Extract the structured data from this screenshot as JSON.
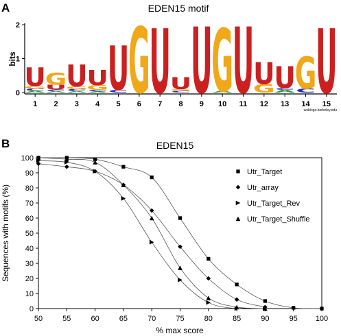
{
  "panel_labels": {
    "a": "A",
    "b": "B"
  },
  "chart_data": [
    {
      "type": "sequence-logo",
      "title": "EDEN15 motif",
      "ylabel": "bits",
      "ylim": [
        0,
        2
      ],
      "yticks": [
        "0",
        "1",
        "2"
      ],
      "credit": "weblogo.berkeley.edu",
      "colors": {
        "U": "#cc2020",
        "G": "#f0a818",
        "C": "#2030c0",
        "A": "#20a040"
      },
      "positions": [
        {
          "pos": "1",
          "stack": [
            [
              "A",
              0.05
            ],
            [
              "C",
              0.06
            ],
            [
              "G",
              0.08
            ],
            [
              "U",
              0.55
            ]
          ]
        },
        {
          "pos": "2",
          "stack": [
            [
              "A",
              0.04
            ],
            [
              "C",
              0.05
            ],
            [
              "U",
              0.14
            ],
            [
              "G",
              0.35
            ]
          ]
        },
        {
          "pos": "3",
          "stack": [
            [
              "A",
              0.04
            ],
            [
              "C",
              0.06
            ],
            [
              "G",
              0.08
            ],
            [
              "U",
              0.65
            ]
          ]
        },
        {
          "pos": "4",
          "stack": [
            [
              "A",
              0.03
            ],
            [
              "C",
              0.05
            ],
            [
              "G",
              0.14
            ],
            [
              "U",
              0.45
            ]
          ]
        },
        {
          "pos": "5",
          "stack": [
            [
              "C",
              0.08
            ],
            [
              "U",
              1.3
            ]
          ]
        },
        {
          "pos": "6",
          "stack": [
            [
              "G",
              1.95
            ]
          ]
        },
        {
          "pos": "7",
          "stack": [
            [
              "U",
              1.9
            ]
          ]
        },
        {
          "pos": "8",
          "stack": [
            [
              "C",
              0.05
            ],
            [
              "G",
              0.05
            ],
            [
              "U",
              0.35
            ]
          ]
        },
        {
          "pos": "9",
          "stack": [
            [
              "U",
              1.95
            ]
          ]
        },
        {
          "pos": "10",
          "stack": [
            [
              "A",
              0.05
            ],
            [
              "G",
              1.85
            ]
          ]
        },
        {
          "pos": "11",
          "stack": [
            [
              "U",
              1.95
            ]
          ]
        },
        {
          "pos": "12",
          "stack": [
            [
              "G",
              0.25
            ],
            [
              "U",
              0.65
            ]
          ]
        },
        {
          "pos": "13",
          "stack": [
            [
              "A",
              0.08
            ],
            [
              "C",
              0.05
            ],
            [
              "U",
              0.65
            ]
          ]
        },
        {
          "pos": "14",
          "stack": [
            [
              "C",
              0.12
            ],
            [
              "G",
              0.95
            ]
          ]
        },
        {
          "pos": "15",
          "stack": [
            [
              "U",
              1.9
            ]
          ]
        }
      ]
    },
    {
      "type": "line",
      "title": "EDEN15",
      "xlabel": "% max score",
      "ylabel": "Sequences with motifs (%)",
      "xlim": [
        50,
        100
      ],
      "ylim": [
        0,
        100
      ],
      "xticks": [
        50,
        55,
        60,
        65,
        70,
        75,
        80,
        85,
        90,
        95,
        100
      ],
      "yticks": [
        0,
        10,
        20,
        30,
        40,
        50,
        60,
        70,
        80,
        90,
        100
      ],
      "legend_position": "right",
      "series": [
        {
          "name": "Utr_Target",
          "marker": "square",
          "x": [
            50,
            55,
            60,
            65,
            70,
            75,
            80,
            85,
            90,
            95,
            100
          ],
          "y": [
            100,
            100,
            99,
            94,
            87,
            60,
            33,
            16,
            5,
            0.5,
            0
          ]
        },
        {
          "name": "Utr_array",
          "marker": "diamond",
          "x": [
            50,
            55,
            60,
            65,
            70,
            75,
            80,
            85,
            90
          ],
          "y": [
            96,
            94,
            91,
            82,
            65,
            41,
            20,
            6,
            1
          ]
        },
        {
          "name": "Utr_Target_Rev",
          "marker": "triangle-right",
          "x": [
            50,
            55,
            60,
            65,
            70,
            75,
            80,
            85,
            90
          ],
          "y": [
            98,
            97,
            91,
            73,
            44,
            19,
            4,
            0,
            0
          ]
        },
        {
          "name": "Utr_Target_Shuffle",
          "marker": "triangle-up",
          "x": [
            50,
            55,
            60,
            65,
            70,
            75,
            80,
            85,
            90
          ],
          "y": [
            100,
            99,
            97,
            82,
            60,
            27,
            7,
            1,
            0
          ]
        }
      ]
    }
  ]
}
